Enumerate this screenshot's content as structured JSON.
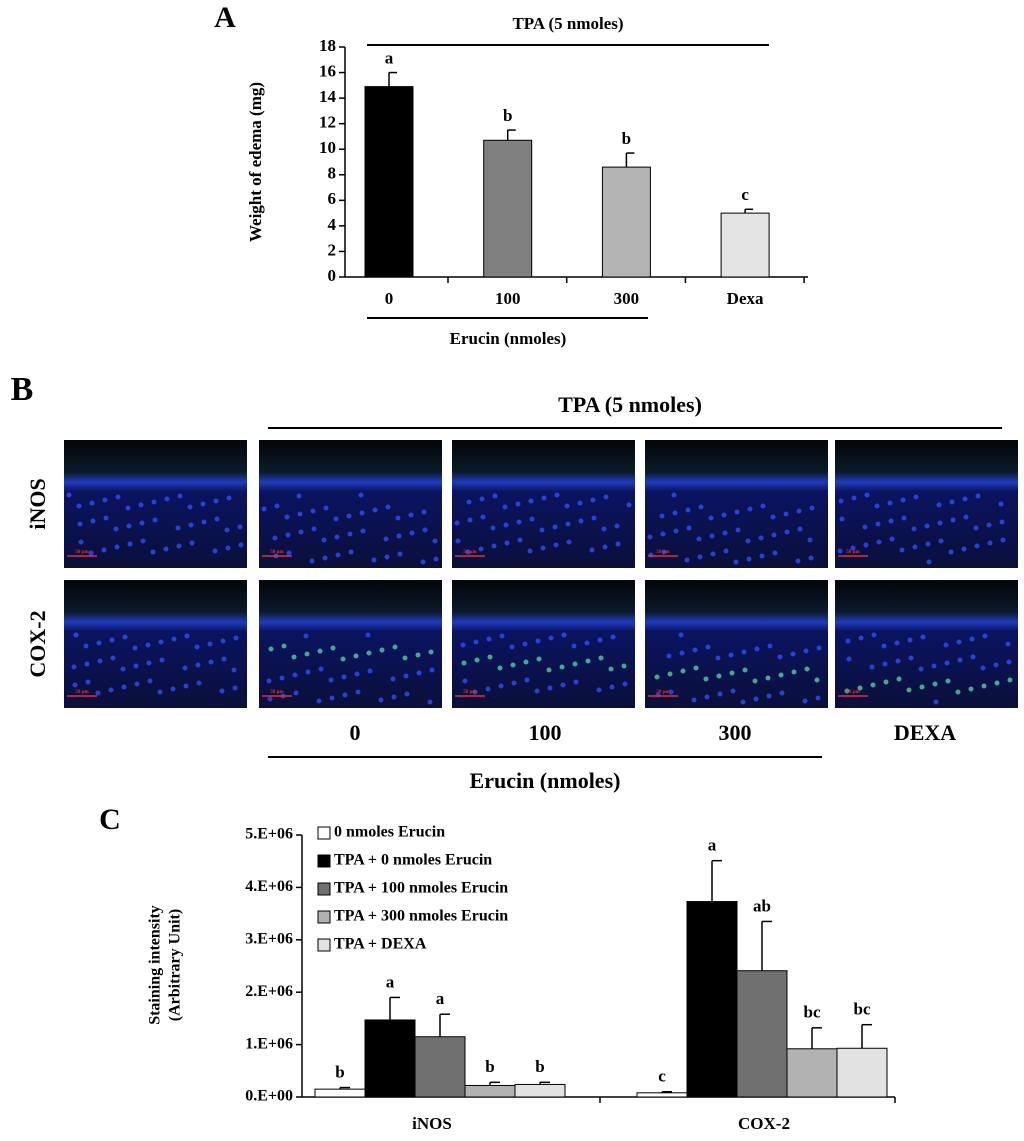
{
  "panel_labels": [
    "A",
    "B",
    "C"
  ],
  "chart_data": [
    {
      "type": "bar",
      "ylabel": "Weight of edema (mg)",
      "categories": [
        "0",
        "100",
        "300",
        "Dexa"
      ],
      "values": [
        14.9,
        10.7,
        8.6,
        5.0
      ],
      "errors": [
        1.1,
        0.8,
        1.1,
        0.3
      ],
      "significance": [
        "a",
        "b",
        "b",
        "c"
      ],
      "colors": [
        "#000000",
        "#808080",
        "#b4b4b4",
        "#e4e4e4"
      ],
      "ylim": [
        0,
        18
      ],
      "yticks": [
        0,
        2,
        4,
        6,
        8,
        10,
        12,
        14,
        16,
        18
      ],
      "top_bracket_label": "TPA (5 nmoles)",
      "bottom_bracket_label": "Erucin (nmoles)"
    },
    {
      "type": "grouped-bar",
      "ylabel": [
        "Staining intensity",
        "(Arbitrary Unit)"
      ],
      "categories": [
        "iNOS",
        "COX-2"
      ],
      "series": [
        {
          "name": "0 nmoles Erucin",
          "color": "#ffffff",
          "values": [
            150000,
            80000
          ],
          "errors": [
            30000,
            20000
          ],
          "significance": [
            "b",
            "c"
          ]
        },
        {
          "name": "TPA + 0 nmoles Erucin",
          "color": "#000000",
          "values": [
            1470000,
            3730000
          ],
          "errors": [
            430000,
            780000
          ],
          "significance": [
            "a",
            "a"
          ]
        },
        {
          "name": "TPA + 100 nmoles Erucin",
          "color": "#707070",
          "values": [
            1150000,
            2410000
          ],
          "errors": [
            430000,
            940000
          ],
          "significance": [
            "a",
            "ab"
          ]
        },
        {
          "name": "TPA + 300 nmoles Erucin",
          "color": "#b2b2b2",
          "values": [
            220000,
            920000
          ],
          "errors": [
            60000,
            400000
          ],
          "significance": [
            "b",
            "bc"
          ]
        },
        {
          "name": "TPA + DEXA",
          "color": "#e2e2e2",
          "values": [
            240000,
            930000
          ],
          "errors": [
            40000,
            450000
          ],
          "significance": [
            "b",
            "bc"
          ]
        }
      ],
      "ylim": [
        0,
        5000000
      ],
      "yticks": [
        {
          "value": 0,
          "label": "0.E+00"
        },
        {
          "value": 1000000,
          "label": "1.E+06"
        },
        {
          "value": 2000000,
          "label": "2.E+06"
        },
        {
          "value": 3000000,
          "label": "3.E+06"
        },
        {
          "value": 4000000,
          "label": "4.E+06"
        },
        {
          "value": 5000000,
          "label": "5.E+06"
        }
      ]
    }
  ],
  "panel_b": {
    "top_label": "TPA (5 nmoles)",
    "rows": [
      "iNOS",
      "COX-2"
    ],
    "columns": [
      "0",
      "100",
      "300",
      "DEXA"
    ],
    "bottom_label": "Erucin (nmoles)",
    "scale_bar": "50 μm"
  }
}
